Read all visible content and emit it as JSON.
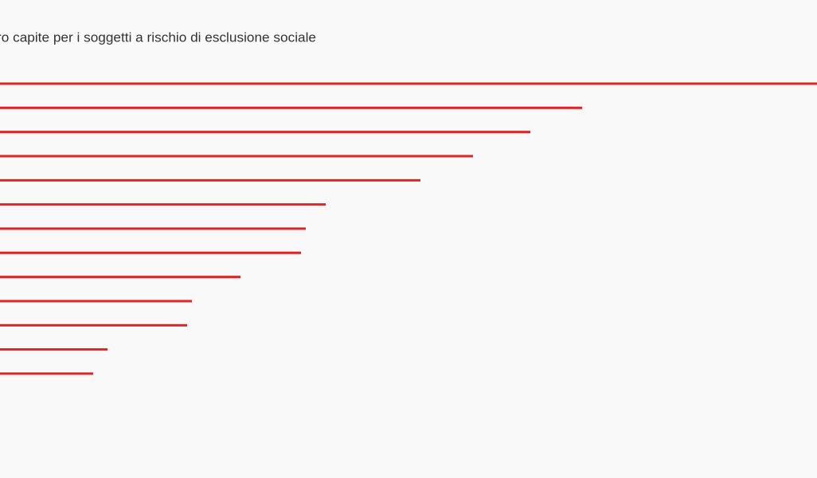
{
  "chart_data": {
    "type": "bar",
    "orientation": "horizontal",
    "title": "ro capite per i soggetti a rischio di esclusione sociale",
    "categories": [
      null,
      null,
      null,
      null,
      null,
      null,
      null,
      null,
      null,
      null,
      null,
      null,
      null
    ],
    "values": [
      1026,
      731,
      666,
      594,
      528,
      409,
      384,
      378,
      302,
      241,
      235,
      135,
      117
    ],
    "color": "#e02424",
    "xlim": [
      0,
      1026
    ]
  }
}
